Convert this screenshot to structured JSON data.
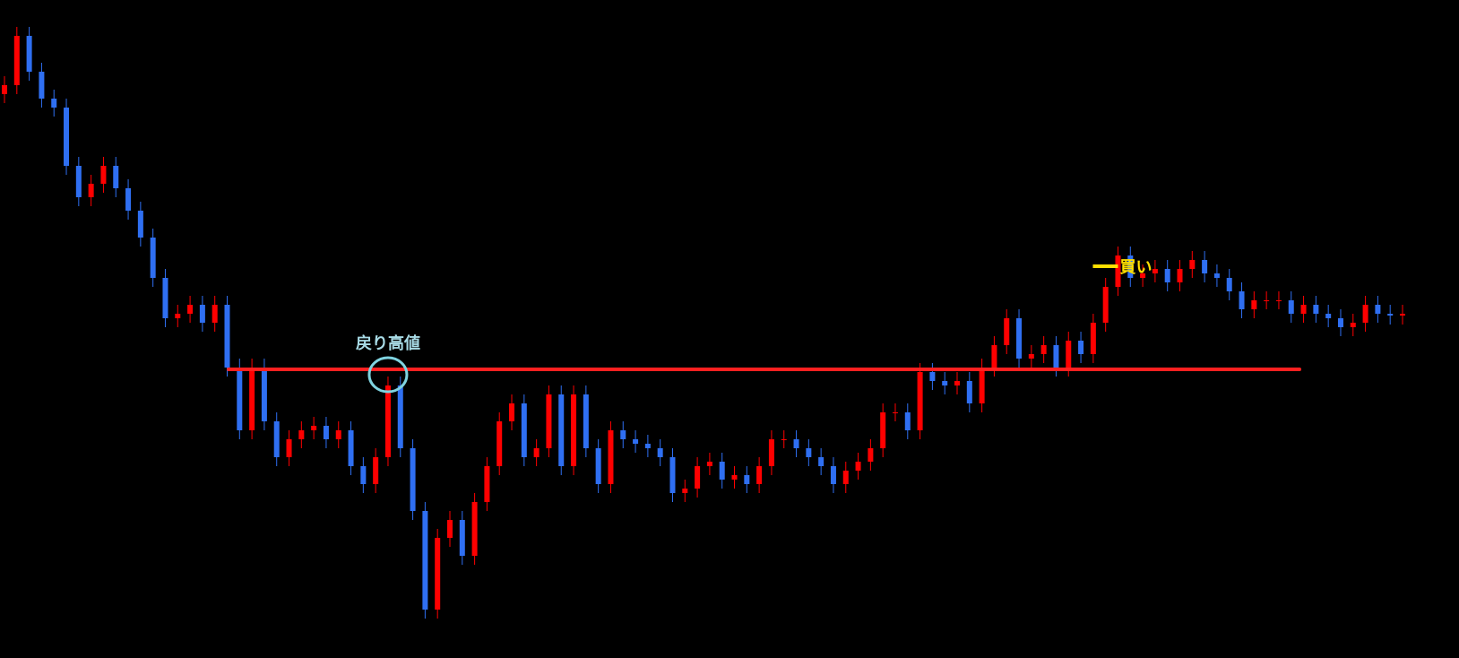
{
  "chart_data": {
    "type": "candlestick",
    "ylim": [
      0,
      73.4
    ],
    "up_color": "#ff0000",
    "down_color": "#2f6ff2",
    "candles": [
      [
        62.9,
        64.9,
        61.9,
        63.9
      ],
      [
        63.9,
        70.4,
        62.9,
        69.4
      ],
      [
        69.4,
        70.4,
        64.4,
        65.4
      ],
      [
        65.4,
        66.4,
        61.4,
        62.4
      ],
      [
        62.4,
        63.4,
        60.4,
        61.4
      ],
      [
        61.4,
        62.4,
        53.9,
        54.9
      ],
      [
        54.9,
        55.9,
        50.4,
        51.4
      ],
      [
        51.4,
        53.9,
        50.4,
        52.9
      ],
      [
        52.9,
        55.9,
        51.9,
        54.9
      ],
      [
        54.9,
        55.9,
        51.4,
        52.4
      ],
      [
        52.4,
        53.4,
        48.9,
        49.9
      ],
      [
        49.9,
        50.9,
        45.9,
        46.9
      ],
      [
        46.9,
        47.9,
        41.4,
        42.4
      ],
      [
        42.4,
        43.4,
        36.9,
        37.9
      ],
      [
        37.9,
        39.4,
        36.9,
        38.4
      ],
      [
        38.4,
        40.4,
        37.4,
        39.4
      ],
      [
        39.4,
        40.4,
        36.4,
        37.4
      ],
      [
        37.4,
        40.4,
        36.4,
        39.4
      ],
      [
        39.4,
        40.4,
        31.4,
        32.4
      ],
      [
        32.4,
        33.4,
        24.4,
        25.4
      ],
      [
        25.4,
        33.4,
        24.4,
        32.4
      ],
      [
        32.4,
        33.4,
        25.4,
        26.4
      ],
      [
        26.4,
        27.4,
        21.4,
        22.4
      ],
      [
        22.4,
        25.4,
        21.4,
        24.4
      ],
      [
        24.4,
        26.4,
        23.4,
        25.4
      ],
      [
        25.4,
        26.9,
        24.4,
        25.9
      ],
      [
        25.9,
        26.9,
        23.4,
        24.4
      ],
      [
        24.4,
        26.4,
        23.4,
        25.4
      ],
      [
        25.4,
        26.4,
        20.4,
        21.4
      ],
      [
        21.4,
        22.4,
        18.4,
        19.4
      ],
      [
        19.4,
        23.4,
        18.4,
        22.4
      ],
      [
        22.4,
        31.4,
        21.4,
        30.4
      ],
      [
        30.4,
        31.4,
        22.4,
        23.4
      ],
      [
        23.4,
        24.4,
        15.4,
        16.4
      ],
      [
        16.4,
        17.4,
        4.4,
        5.4
      ],
      [
        5.4,
        14.4,
        4.4,
        13.4
      ],
      [
        13.4,
        16.4,
        12.4,
        15.4
      ],
      [
        15.4,
        16.4,
        10.4,
        11.4
      ],
      [
        11.4,
        18.4,
        10.4,
        17.4
      ],
      [
        17.4,
        22.4,
        16.4,
        21.4
      ],
      [
        21.4,
        27.4,
        20.4,
        26.4
      ],
      [
        26.4,
        29.4,
        25.4,
        28.4
      ],
      [
        28.4,
        29.4,
        21.4,
        22.4
      ],
      [
        22.4,
        24.4,
        21.4,
        23.4
      ],
      [
        23.4,
        30.4,
        22.4,
        29.4
      ],
      [
        29.4,
        30.4,
        20.4,
        21.4
      ],
      [
        21.4,
        30.4,
        20.4,
        29.4
      ],
      [
        29.4,
        30.4,
        22.4,
        23.4
      ],
      [
        23.4,
        24.4,
        18.4,
        19.4
      ],
      [
        19.4,
        26.4,
        18.4,
        25.4
      ],
      [
        25.4,
        26.4,
        23.4,
        24.4
      ],
      [
        24.4,
        25.4,
        22.9,
        23.9
      ],
      [
        23.9,
        24.9,
        22.4,
        23.4
      ],
      [
        23.4,
        24.4,
        21.4,
        22.4
      ],
      [
        22.4,
        23.4,
        17.4,
        18.4
      ],
      [
        18.4,
        19.9,
        17.4,
        18.9
      ],
      [
        18.9,
        22.4,
        17.9,
        21.4
      ],
      [
        21.4,
        22.9,
        20.4,
        21.9
      ],
      [
        21.9,
        22.9,
        18.9,
        19.9
      ],
      [
        19.9,
        21.4,
        18.9,
        20.4
      ],
      [
        20.4,
        21.4,
        18.4,
        19.4
      ],
      [
        19.4,
        22.4,
        18.4,
        21.4
      ],
      [
        21.4,
        25.4,
        20.4,
        24.4
      ],
      [
        24.4,
        25.4,
        23.4,
        24.4
      ],
      [
        24.4,
        25.4,
        22.4,
        23.4
      ],
      [
        23.4,
        24.4,
        21.4,
        22.4
      ],
      [
        22.4,
        23.4,
        20.4,
        21.4
      ],
      [
        21.4,
        22.4,
        18.4,
        19.4
      ],
      [
        19.4,
        21.9,
        18.4,
        20.9
      ],
      [
        20.9,
        22.9,
        19.9,
        21.9
      ],
      [
        21.9,
        24.4,
        20.9,
        23.4
      ],
      [
        23.4,
        28.4,
        22.4,
        27.4
      ],
      [
        27.4,
        28.4,
        26.4,
        27.4
      ],
      [
        27.4,
        28.4,
        24.4,
        25.4
      ],
      [
        25.4,
        32.9,
        24.4,
        31.9
      ],
      [
        31.9,
        32.9,
        29.9,
        30.9
      ],
      [
        30.9,
        31.9,
        29.4,
        30.4
      ],
      [
        30.4,
        31.9,
        29.4,
        30.9
      ],
      [
        30.9,
        31.9,
        27.4,
        28.4
      ],
      [
        28.4,
        33.4,
        27.4,
        32.4
      ],
      [
        32.4,
        35.9,
        31.4,
        34.9
      ],
      [
        34.9,
        38.9,
        33.9,
        37.9
      ],
      [
        37.9,
        38.9,
        32.4,
        33.4
      ],
      [
        33.4,
        34.9,
        32.4,
        33.9
      ],
      [
        33.9,
        35.9,
        32.9,
        34.9
      ],
      [
        34.9,
        35.9,
        31.4,
        32.4
      ],
      [
        32.4,
        36.4,
        31.4,
        35.4
      ],
      [
        35.4,
        36.4,
        32.9,
        33.9
      ],
      [
        33.9,
        38.4,
        32.9,
        37.4
      ],
      [
        37.4,
        42.4,
        36.4,
        41.4
      ],
      [
        41.4,
        45.9,
        40.4,
        44.9
      ],
      [
        44.9,
        45.9,
        41.4,
        42.4
      ],
      [
        42.4,
        43.9,
        41.4,
        42.9
      ],
      [
        42.9,
        44.4,
        41.9,
        43.4
      ],
      [
        43.4,
        44.4,
        40.9,
        41.9
      ],
      [
        41.9,
        44.4,
        40.9,
        43.4
      ],
      [
        43.4,
        45.4,
        42.4,
        44.4
      ],
      [
        44.4,
        45.4,
        41.9,
        42.9
      ],
      [
        42.9,
        43.9,
        41.4,
        42.4
      ],
      [
        42.4,
        43.4,
        39.9,
        40.9
      ],
      [
        40.9,
        41.9,
        37.9,
        38.9
      ],
      [
        38.9,
        40.9,
        37.9,
        39.9
      ],
      [
        39.9,
        40.9,
        38.9,
        39.9
      ],
      [
        39.9,
        40.9,
        38.9,
        39.9
      ],
      [
        39.9,
        40.9,
        37.4,
        38.4
      ],
      [
        38.4,
        40.4,
        37.4,
        39.4
      ],
      [
        39.4,
        40.4,
        37.4,
        38.4
      ],
      [
        38.4,
        39.4,
        36.9,
        37.9
      ],
      [
        37.9,
        38.9,
        35.9,
        36.9
      ],
      [
        36.9,
        38.4,
        35.9,
        37.4
      ],
      [
        37.4,
        40.4,
        36.4,
        39.4
      ],
      [
        39.4,
        40.4,
        37.4,
        38.4
      ],
      [
        38.4,
        39.4,
        37.2,
        38.2
      ],
      [
        38.2,
        39.4,
        37.2,
        38.4
      ]
    ],
    "level": {
      "value": 32.2,
      "label": "戻り高値",
      "color": "#ff2020"
    },
    "signal": {
      "value": 43.7,
      "label": "買い",
      "color": "#ffe000"
    }
  }
}
